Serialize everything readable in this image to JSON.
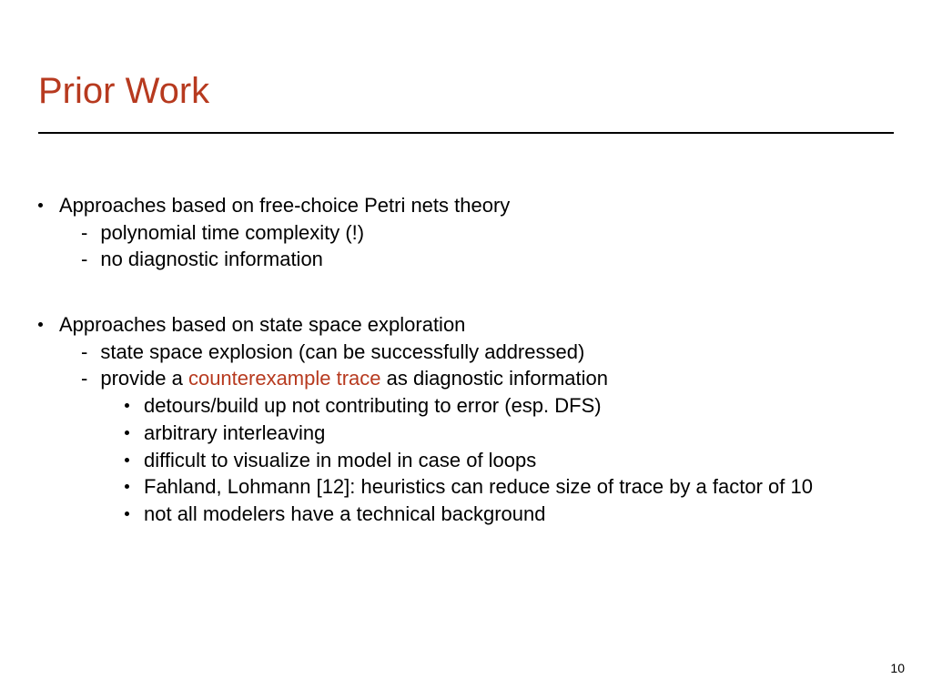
{
  "colors": {
    "title": "#b73a1f",
    "highlight": "#b73a1f",
    "text": "#000000",
    "background": "#ffffff",
    "rule": "#000000"
  },
  "typography": {
    "title_fontsize_pt": 30,
    "body_fontsize_pt": 17,
    "pagenum_fontsize_pt": 11,
    "font_family": "Arial"
  },
  "title": "Prior Work",
  "section1": {
    "heading": "Approaches based on free-choice Petri nets theory",
    "sub1": "polynomial time complexity (!)",
    "sub2": "no diagnostic information"
  },
  "section2": {
    "heading": "Approaches based on state space exploration",
    "sub1": "state space explosion (can be successfully addressed)",
    "sub2_pre": "provide a ",
    "sub2_hl": "counterexample trace",
    "sub2_post": " as diagnostic information",
    "b1": "detours/build up not contributing to error (esp. DFS)",
    "b2": "arbitrary interleaving",
    "b3": "difficult to visualize in model in case of loops",
    "b4": "Fahland, Lohmann [12]: heuristics can reduce size of trace by a factor of 10",
    "b5": "not all modelers have a technical background"
  },
  "page_number": "10"
}
